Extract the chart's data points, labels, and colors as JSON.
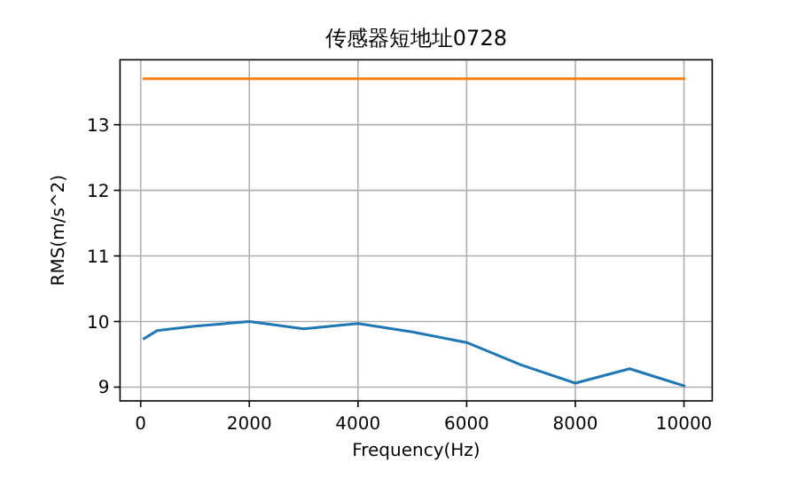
{
  "chart_data": {
    "type": "line",
    "title": "传感器短地址0728",
    "xlabel": "Frequency(Hz)",
    "ylabel": "RMS(m/s^2)",
    "xlim": [
      -380,
      10520
    ],
    "ylim": [
      8.79,
      13.99
    ],
    "xticks": [
      0,
      2000,
      4000,
      6000,
      8000,
      10000
    ],
    "yticks": [
      9,
      10,
      11,
      12,
      13
    ],
    "grid": true,
    "series": [
      {
        "color": "#1f77b4",
        "x": [
          63,
          300,
          1000,
          2000,
          3000,
          4000,
          5000,
          6000,
          7000,
          8000,
          9000,
          10000
        ],
        "values": [
          9.74,
          9.86,
          9.93,
          10.0,
          9.89,
          9.97,
          9.84,
          9.68,
          9.34,
          9.06,
          9.28,
          9.02
        ]
      },
      {
        "color": "#ff7f0e",
        "x": [
          63,
          10000
        ],
        "values": [
          13.7,
          13.7
        ]
      }
    ]
  }
}
